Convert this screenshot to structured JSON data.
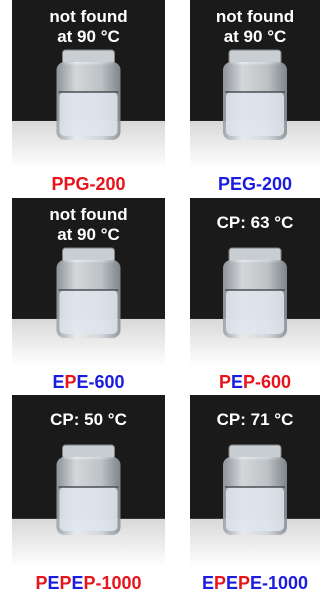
{
  "panels": [
    {
      "caption": [
        "not found",
        "at 90 °C"
      ],
      "label": [
        {
          "text": "PPG-200",
          "color": "#e8141c"
        }
      ]
    },
    {
      "caption": [
        "not found",
        "at 90 °C"
      ],
      "label": [
        {
          "text": "PEG-200",
          "color": "#1c1ce0"
        }
      ]
    },
    {
      "caption": [
        "not found",
        "at 90 °C"
      ],
      "label": [
        {
          "text": "E",
          "color": "#1c1ce0"
        },
        {
          "text": "P",
          "color": "#e8141c"
        },
        {
          "text": "E-600",
          "color": "#1c1ce0"
        }
      ]
    },
    {
      "caption": [
        "CP: 63 °C"
      ],
      "label": [
        {
          "text": "P",
          "color": "#e8141c"
        },
        {
          "text": "E",
          "color": "#1c1ce0"
        },
        {
          "text": "P-600",
          "color": "#e8141c"
        }
      ]
    },
    {
      "caption": [
        "CP: 50 °C"
      ],
      "label": [
        {
          "text": "P",
          "color": "#e8141c"
        },
        {
          "text": "E",
          "color": "#1c1ce0"
        },
        {
          "text": "P",
          "color": "#e8141c"
        },
        {
          "text": "E",
          "color": "#1c1ce0"
        },
        {
          "text": "P-1000",
          "color": "#e8141c"
        }
      ]
    },
    {
      "caption": [
        "CP: 71 °C"
      ],
      "label": [
        {
          "text": "E",
          "color": "#1c1ce0"
        },
        {
          "text": "P",
          "color": "#e8141c"
        },
        {
          "text": "E",
          "color": "#1c1ce0"
        },
        {
          "text": "P",
          "color": "#e8141c"
        },
        {
          "text": "E-1000",
          "color": "#1c1ce0"
        }
      ]
    }
  ]
}
